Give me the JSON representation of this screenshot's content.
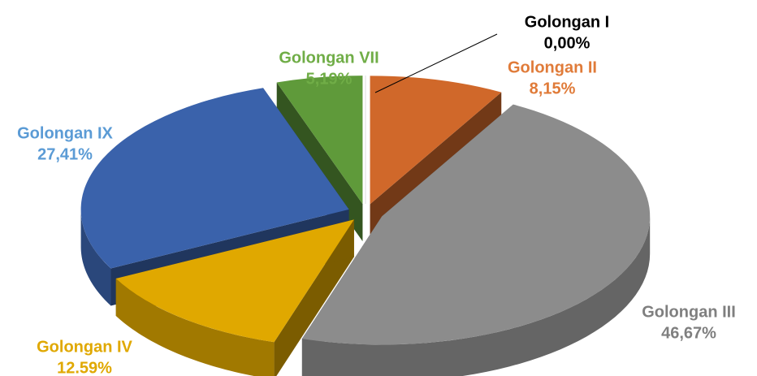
{
  "chart_data": {
    "type": "pie3d",
    "categories": [
      "Golongan I",
      "Golongan II",
      "Golongan III",
      "Golongan IV",
      "Golongan IX",
      "Golongan VII"
    ],
    "values": [
      0,
      8.15,
      46.67,
      12.59,
      27.41,
      5.19
    ],
    "value_labels": [
      "0,00%",
      "8,15%",
      "46,67%",
      "12.59%",
      "27,41%",
      "5,19%"
    ],
    "colors": [
      "#ffffff",
      "#d0682a",
      "#8c8c8c",
      "#e0a800",
      "#3a62ab",
      "#5f9a3a"
    ],
    "label_colors": [
      "#000000",
      "#e07b39",
      "#7f7f7f",
      "#e0a800",
      "#5b9bd5",
      "#70ad47"
    ]
  }
}
